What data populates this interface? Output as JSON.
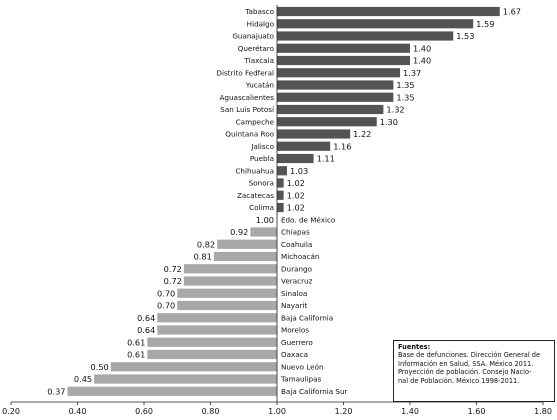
{
  "chart_data": {
    "type": "bar",
    "orientation": "horizontal",
    "baseline": 1.0,
    "xlim": [
      0.2,
      1.8
    ],
    "xticks": [
      "0.20",
      "0.40",
      "0.60",
      "0.80",
      "1.00",
      "1.20",
      "1.40",
      "1.60",
      "1.80"
    ],
    "categories": [
      "Tabasco",
      "Hidalgo",
      "Guanajuato",
      "Querétaro",
      "Tlaxcala",
      "Distrito Fedferal",
      "Yucatán",
      "Aguascalientes",
      "San Luis Potosí",
      "Campeche",
      "Quintana Roo",
      "Jalisco",
      "Puebla",
      "Chihuahua",
      "Sonora",
      "Zacatecas",
      "Colima",
      "Edo. de México",
      "Chiapas",
      "Coahuila",
      "Michoacán",
      "Durango",
      "Veracruz",
      "Sinaloa",
      "Nayarit",
      "Baja California",
      "Morelos",
      "Guerrero",
      "Oaxaca",
      "Nuevo León",
      "Tamaulipas",
      "Baja California Sur"
    ],
    "values": [
      1.67,
      1.59,
      1.53,
      1.4,
      1.4,
      1.37,
      1.35,
      1.35,
      1.32,
      1.3,
      1.22,
      1.16,
      1.11,
      1.03,
      1.02,
      1.02,
      1.02,
      1.0,
      0.92,
      0.82,
      0.81,
      0.72,
      0.72,
      0.7,
      0.7,
      0.64,
      0.64,
      0.61,
      0.61,
      0.5,
      0.45,
      0.37
    ],
    "value_labels": [
      "1.67",
      "1.59",
      "1.53",
      "1.40",
      "1.40",
      "1.37",
      "1.35",
      "1.35",
      "1.32",
      "1.30",
      "1.22",
      "1.16",
      "1.11",
      "1.03",
      "1.02",
      "1.02",
      "1.02",
      "1.00",
      "0.92",
      "0.82",
      "0.81",
      "0.72",
      "0.72",
      "0.70",
      "0.70",
      "0.64",
      "0.64",
      "0.61",
      "0.61",
      "0.50",
      "0.45",
      "0.37"
    ],
    "colors": {
      "above": "#545454",
      "below": "#a8a8a8",
      "axis": "#222222"
    },
    "grid": false
  },
  "sources": {
    "title": "Fuentes:",
    "lines": [
      "Base de defunciones. Dirección General de",
      "Información en Salud, SSA. México 2011.",
      "Proyección de población. Consejo Nacio-",
      "nal de Población. México 1998-2011."
    ]
  }
}
